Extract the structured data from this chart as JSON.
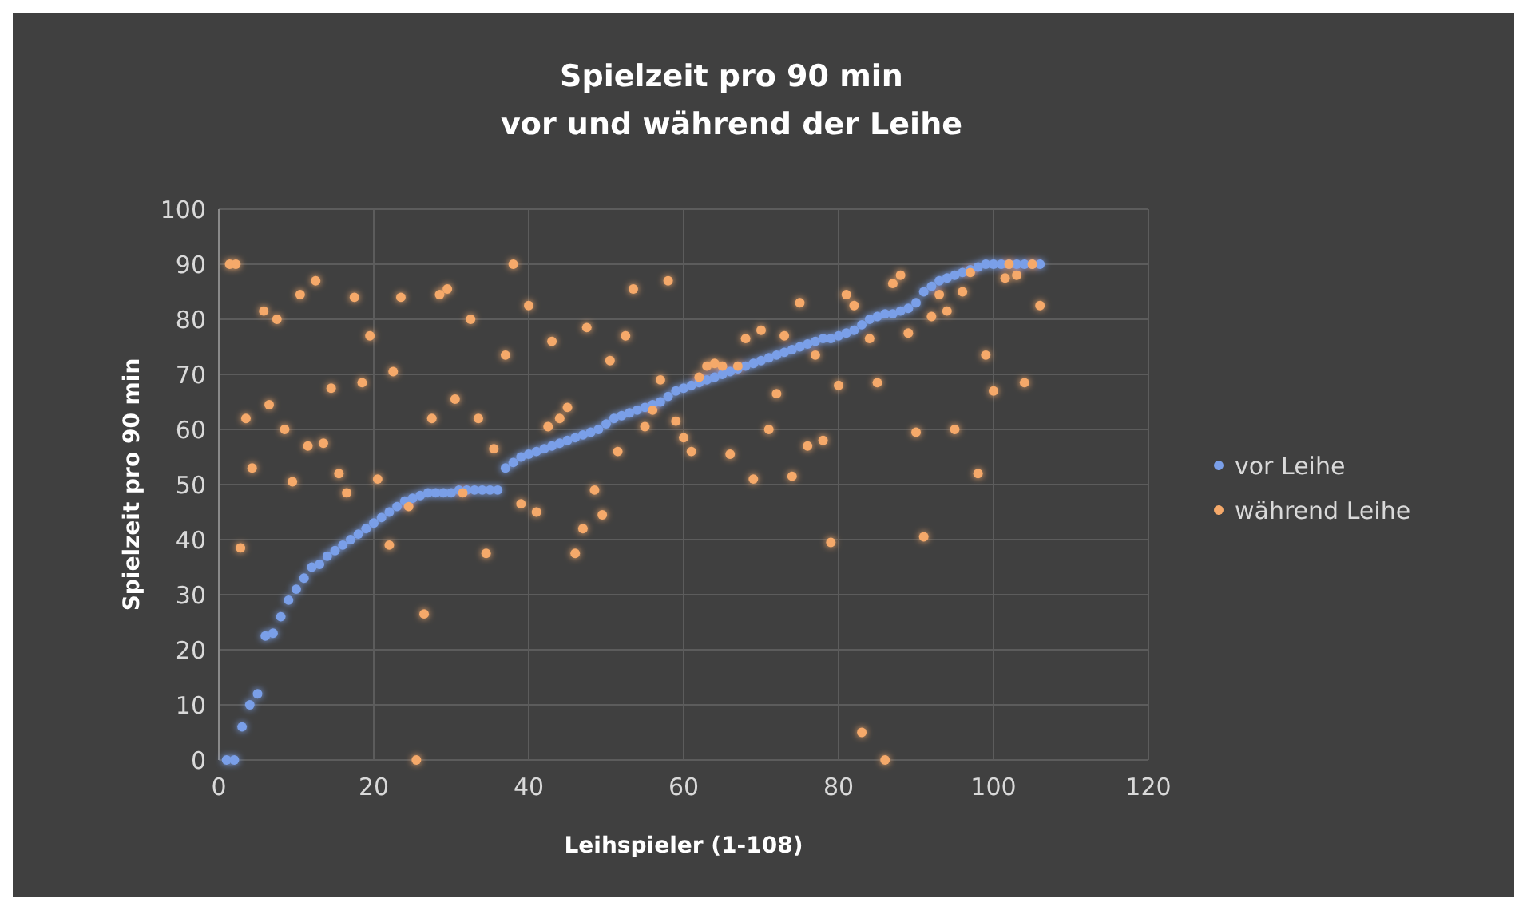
{
  "chart_data": {
    "type": "scatter",
    "title": "Spielzeit pro 90 min\nvor und während der Leihe",
    "xlabel": "Leihspieler (1-108)",
    "ylabel": "Spielzeit pro 90 min",
    "xlim": [
      0,
      120
    ],
    "xticks": [
      0,
      20,
      40,
      60,
      80,
      100,
      120
    ],
    "ylim": [
      0,
      100
    ],
    "yticks": [
      0,
      10,
      20,
      30,
      40,
      50,
      60,
      70,
      80,
      90,
      100
    ],
    "grid": true,
    "legend": "right",
    "marker": "circle",
    "series": [
      {
        "name": "vor Leihe",
        "color": "#7a9fe8",
        "x": [
          1,
          2,
          3,
          4,
          5,
          6,
          7,
          8,
          9,
          10,
          11,
          12,
          13,
          14,
          15,
          16,
          17,
          18,
          19,
          20,
          21,
          22,
          23,
          24,
          25,
          26,
          27,
          28,
          29,
          30,
          31,
          32,
          33,
          34,
          35,
          36,
          37,
          38,
          39,
          40,
          41,
          42,
          43,
          44,
          45,
          46,
          47,
          48,
          49,
          50,
          51,
          52,
          53,
          54,
          55,
          56,
          57,
          58,
          59,
          60,
          61,
          62,
          63,
          64,
          65,
          66,
          67,
          68,
          69,
          70,
          71,
          72,
          73,
          74,
          75,
          76,
          77,
          78,
          79,
          80,
          81,
          82,
          83,
          84,
          85,
          86,
          87,
          88,
          89,
          90,
          91,
          92,
          93,
          94,
          95,
          96,
          97,
          98,
          99,
          100,
          101,
          102,
          103,
          104,
          105,
          106
        ],
        "values": [
          0,
          0,
          6,
          10,
          12,
          22.5,
          23,
          26,
          29,
          31,
          33,
          35,
          35.5,
          37,
          38,
          39,
          40,
          41,
          42,
          43,
          44,
          45,
          46,
          47,
          47.5,
          48,
          48.5,
          48.5,
          48.5,
          48.5,
          49,
          49,
          49,
          49,
          49,
          49,
          53,
          54,
          55,
          55.5,
          56,
          56.5,
          57,
          57.5,
          58,
          58.5,
          59,
          59.5,
          60,
          61,
          62,
          62.5,
          63,
          63.5,
          64,
          64.5,
          65,
          66,
          67,
          67.5,
          68,
          68.5,
          69,
          69.5,
          70,
          70.5,
          71,
          71.5,
          72,
          72.5,
          73,
          73.5,
          74,
          74.5,
          75,
          75.5,
          76,
          76.5,
          76.5,
          77,
          77.5,
          78,
          79,
          80,
          80.5,
          81,
          81,
          81.5,
          82,
          83,
          85,
          86,
          87,
          87.5,
          88,
          88.5,
          89,
          89.5,
          90,
          90,
          90,
          90,
          90,
          90,
          90,
          90
        ]
      },
      {
        "name": "während Leihe",
        "color": "#f5a96a",
        "x": [
          1.4,
          2.2,
          2.8,
          3.5,
          4.3,
          5.8,
          6.5,
          7.5,
          8.5,
          9.5,
          10.5,
          11.5,
          12.5,
          13.5,
          14.5,
          15.5,
          16.5,
          17.5,
          18.5,
          19.5,
          20.5,
          22,
          22.5,
          23.5,
          24.5,
          25.5,
          26.5,
          27.5,
          28.5,
          29.5,
          30.5,
          31.5,
          32.5,
          33.5,
          34.5,
          35.5,
          37,
          38,
          39,
          40,
          41,
          42.5,
          43,
          44,
          45,
          46,
          47,
          47.5,
          48.5,
          49.5,
          50.5,
          51.5,
          52.5,
          53.5,
          55,
          56,
          57,
          58,
          59,
          60,
          61,
          62,
          63,
          64,
          65,
          66,
          67,
          68,
          69,
          70,
          71,
          72,
          73,
          74,
          75,
          76,
          77,
          78,
          79,
          80,
          81,
          82,
          83,
          84,
          85,
          86,
          87,
          88,
          89,
          90,
          91,
          92,
          93,
          94,
          95,
          96,
          97,
          98,
          99,
          100,
          101.5,
          102,
          103,
          104,
          105,
          106
        ],
        "values": [
          90,
          90,
          38.5,
          62,
          53,
          81.5,
          64.5,
          80,
          60,
          50.5,
          84.5,
          57,
          87,
          57.5,
          67.5,
          52,
          48.5,
          84,
          68.5,
          77,
          51,
          39,
          70.5,
          84,
          46,
          0,
          26.5,
          62,
          84.5,
          85.5,
          65.5,
          48.5,
          80,
          62,
          37.5,
          56.5,
          73.5,
          90,
          46.5,
          82.5,
          45,
          60.5,
          76,
          62,
          64,
          37.5,
          42,
          78.5,
          49,
          44.5,
          72.5,
          56,
          77,
          85.5,
          60.5,
          63.5,
          69,
          87,
          61.5,
          58.5,
          56,
          69.5,
          71.5,
          72,
          71.5,
          55.5,
          71.5,
          76.5,
          51,
          78,
          60,
          66.5,
          77,
          51.5,
          83,
          57,
          73.5,
          58,
          39.5,
          68,
          84.5,
          82.5,
          5,
          76.5,
          68.5,
          0,
          86.5,
          88,
          77.5,
          59.5,
          40.5,
          80.5,
          84.5,
          81.5,
          60,
          85,
          88.5,
          52,
          73.5,
          67,
          87.5,
          90,
          88,
          68.5,
          90,
          82.5
        ]
      }
    ]
  }
}
